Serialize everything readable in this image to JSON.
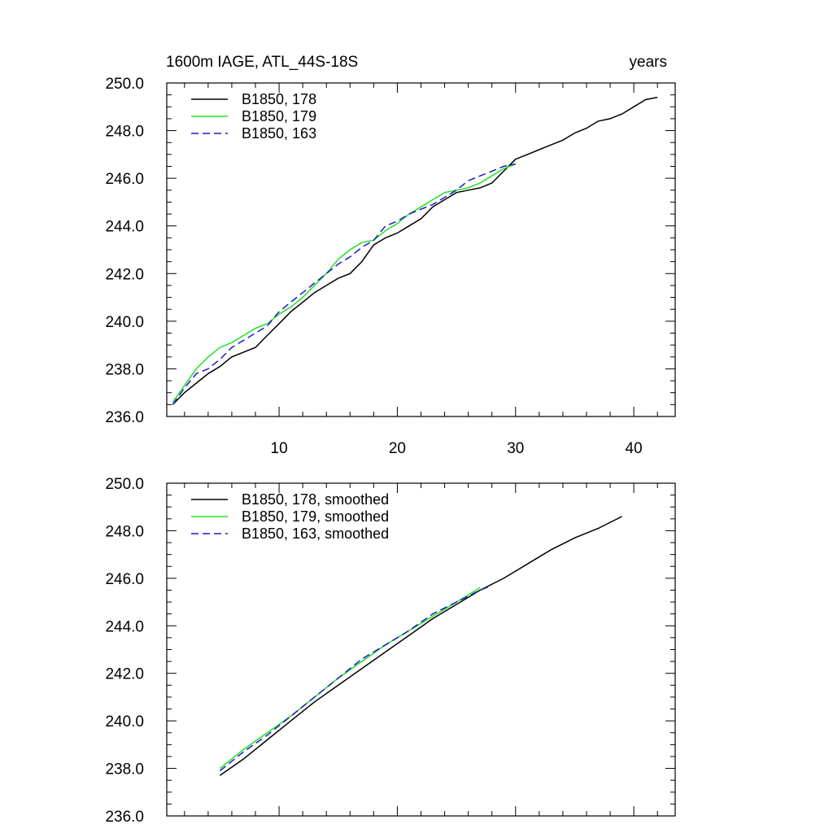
{
  "colors": {
    "run_178": "#000000",
    "run_179": "#22e022",
    "run_163": "#1a1acc"
  },
  "chart_data": [
    {
      "type": "line",
      "title": "1600m IAGE, ATL_44S-18S",
      "subtitle": "years",
      "xlabel": "",
      "ylabel": "",
      "xlim": [
        0.5,
        43.5
      ],
      "ylim": [
        236.0,
        250.0
      ],
      "x_ticks": [
        10,
        20,
        30,
        40
      ],
      "y_ticks": [
        "236.0",
        "238.0",
        "240.0",
        "242.0",
        "244.0",
        "246.0",
        "248.0",
        "250.0"
      ],
      "legend_placement": "top-left",
      "series": [
        {
          "name": "B1850, 178",
          "color": "#000000",
          "dash": "solid",
          "x": [
            1,
            2,
            3,
            4,
            5,
            6,
            7,
            8,
            9,
            10,
            11,
            12,
            13,
            14,
            15,
            16,
            17,
            18,
            19,
            20,
            21,
            22,
            23,
            24,
            25,
            26,
            27,
            28,
            29,
            30,
            31,
            32,
            33,
            34,
            35,
            36,
            37,
            38,
            39,
            40,
            41,
            42
          ],
          "y": [
            236.5,
            237.0,
            237.4,
            237.8,
            238.1,
            238.5,
            238.7,
            238.9,
            239.4,
            239.9,
            240.4,
            240.8,
            241.2,
            241.5,
            241.8,
            242.0,
            242.5,
            243.2,
            243.5,
            243.7,
            244.0,
            244.3,
            244.8,
            245.1,
            245.4,
            245.5,
            245.6,
            245.8,
            246.3,
            246.8,
            247.0,
            247.2,
            247.4,
            247.6,
            247.9,
            248.1,
            248.4,
            248.5,
            248.7,
            249.0,
            249.3,
            249.4
          ]
        },
        {
          "name": "B1850, 179",
          "color": "#22e022",
          "dash": "solid",
          "x": [
            1,
            2,
            3,
            4,
            5,
            6,
            7,
            8,
            9,
            10,
            11,
            12,
            13,
            14,
            15,
            16,
            17,
            18,
            19,
            20,
            21,
            22,
            23,
            24,
            25,
            26,
            27,
            28,
            29,
            30
          ],
          "y": [
            236.6,
            237.3,
            238.0,
            238.5,
            238.9,
            239.1,
            239.4,
            239.7,
            239.9,
            240.3,
            240.6,
            241.0,
            241.5,
            242.0,
            242.6,
            243.0,
            243.3,
            243.4,
            243.8,
            244.1,
            244.5,
            244.8,
            245.1,
            245.4,
            245.5,
            245.6,
            245.8,
            246.1,
            246.4,
            246.6
          ]
        },
        {
          "name": "B1850, 163",
          "color": "#1a1acc",
          "dash": "dashed",
          "x": [
            1,
            2,
            3,
            4,
            5,
            6,
            7,
            8,
            9,
            10,
            11,
            12,
            13,
            14,
            15,
            16,
            17,
            18,
            19,
            20,
            21,
            22,
            23,
            24,
            25,
            26,
            27,
            28,
            29,
            30
          ],
          "y": [
            236.5,
            237.2,
            237.8,
            238.0,
            238.4,
            238.9,
            239.2,
            239.5,
            239.8,
            240.4,
            240.8,
            241.2,
            241.6,
            242.0,
            242.4,
            242.7,
            243.1,
            243.4,
            244.0,
            244.2,
            244.5,
            244.7,
            244.9,
            245.2,
            245.5,
            245.9,
            246.1,
            246.3,
            246.5,
            246.6
          ]
        }
      ]
    },
    {
      "type": "line",
      "title": "",
      "xlabel": "",
      "ylabel": "",
      "xlim": [
        0.5,
        43.5
      ],
      "ylim": [
        236.0,
        250.0
      ],
      "x_ticks": [
        10,
        20,
        30,
        40
      ],
      "y_ticks": [
        "236.0",
        "238.0",
        "240.0",
        "242.0",
        "244.0",
        "246.0",
        "248.0",
        "250.0"
      ],
      "legend_placement": "top-left",
      "series": [
        {
          "name": "B1850, 178, smoothed",
          "color": "#000000",
          "dash": "solid",
          "x": [
            5,
            7,
            9,
            11,
            13,
            15,
            17,
            19,
            21,
            23,
            25,
            27,
            29,
            31,
            33,
            35,
            37,
            39
          ],
          "y": [
            237.7,
            238.4,
            239.2,
            240.0,
            240.8,
            241.5,
            242.2,
            242.9,
            243.6,
            244.3,
            244.9,
            245.5,
            246.0,
            246.6,
            247.2,
            247.7,
            248.1,
            248.6
          ]
        },
        {
          "name": "B1850, 179, smoothed",
          "color": "#22e022",
          "dash": "solid",
          "x": [
            5,
            7,
            9,
            11,
            13,
            15,
            17,
            19,
            21,
            23,
            25,
            27
          ],
          "y": [
            238.0,
            238.8,
            239.5,
            240.2,
            241.0,
            241.8,
            242.5,
            243.2,
            243.8,
            244.4,
            245.0,
            245.6
          ]
        },
        {
          "name": "B1850, 163, smoothed",
          "color": "#1a1acc",
          "dash": "dashed",
          "x": [
            5,
            7,
            9,
            11,
            13,
            15,
            17,
            19,
            21,
            23,
            25,
            27,
            28
          ],
          "y": [
            237.9,
            238.7,
            239.4,
            240.2,
            241.0,
            241.8,
            242.6,
            243.2,
            243.8,
            244.5,
            245.0,
            245.5,
            245.7
          ]
        }
      ]
    }
  ]
}
